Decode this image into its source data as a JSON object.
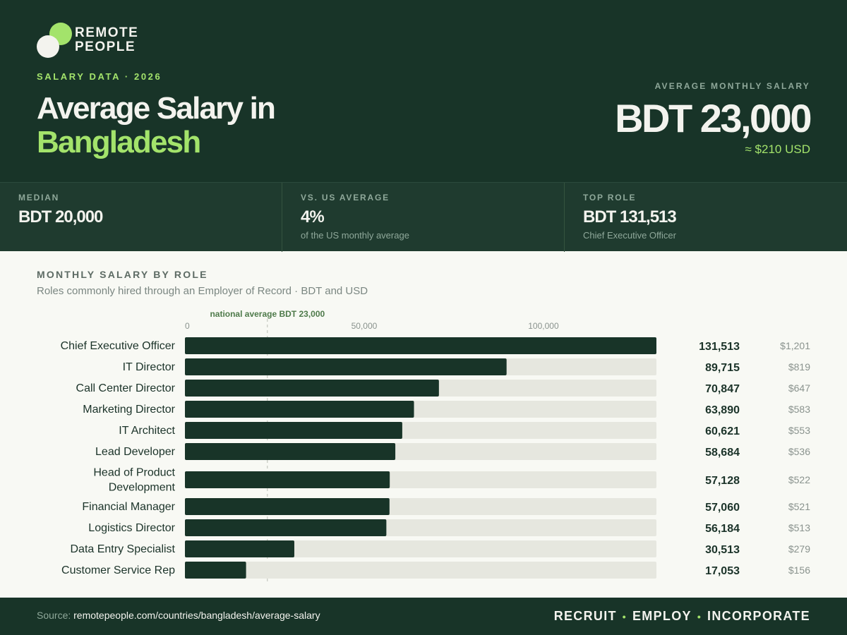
{
  "brand": {
    "line1": "REMOTE",
    "line2": "PEOPLE"
  },
  "header": {
    "eyebrow": "SALARY DATA · 2026",
    "title_line1": "Average Salary in",
    "title_line2": "Bangladesh",
    "avg_label": "AVERAGE MONTHLY SALARY",
    "avg_value": "BDT 23,000",
    "avg_usd": "≈ $210 USD"
  },
  "stats": [
    {
      "label": "MEDIAN",
      "value": "BDT 20,000",
      "sub": ""
    },
    {
      "label": "VS. US AVERAGE",
      "value": "4%",
      "sub": "of the US monthly average"
    },
    {
      "label": "TOP ROLE",
      "value": "BDT 131,513",
      "sub": "Chief Executive Officer"
    }
  ],
  "section": {
    "title": "MONTHLY SALARY BY ROLE",
    "subtitle": "Roles commonly hired through an Employer of Record · BDT and USD"
  },
  "chart_data": {
    "type": "bar",
    "orientation": "horizontal",
    "x_ticks": [
      {
        "value": 0,
        "label": "0"
      },
      {
        "value": 50000,
        "label": "50,000"
      },
      {
        "value": 100000,
        "label": "100,000"
      }
    ],
    "xlim": [
      0,
      131513
    ],
    "reference_line": {
      "value": 23000,
      "label": "national average BDT 23,000"
    },
    "colors": {
      "bar": "#183428",
      "track": "#e6e7df",
      "reference": "#4e7a4a"
    },
    "rows": [
      {
        "label": "Chief Executive Officer",
        "value": 131513,
        "value_label": "131,513",
        "usd": "$1,201"
      },
      {
        "label": "IT Director",
        "value": 89715,
        "value_label": "89,715",
        "usd": "$819"
      },
      {
        "label": "Call Center Director",
        "value": 70847,
        "value_label": "70,847",
        "usd": "$647"
      },
      {
        "label": "Marketing Director",
        "value": 63890,
        "value_label": "63,890",
        "usd": "$583"
      },
      {
        "label": "IT Architect",
        "value": 60621,
        "value_label": "60,621",
        "usd": "$553"
      },
      {
        "label": "Lead Developer",
        "value": 58684,
        "value_label": "58,684",
        "usd": "$536"
      },
      {
        "label": "Head of Product Development",
        "label_lines": [
          "Head of Product",
          "Development"
        ],
        "value": 57128,
        "value_label": "57,128",
        "usd": "$522"
      },
      {
        "label": "Financial Manager",
        "value": 57060,
        "value_label": "57,060",
        "usd": "$521"
      },
      {
        "label": "Logistics Director",
        "value": 56184,
        "value_label": "56,184",
        "usd": "$513"
      },
      {
        "label": "Data Entry Specialist",
        "value": 30513,
        "value_label": "30,513",
        "usd": "$279"
      },
      {
        "label": "Customer Service Rep",
        "value": 17053,
        "value_label": "17,053",
        "usd": "$156"
      }
    ]
  },
  "footer": {
    "source_label": "Source:",
    "source_url": "remotepeople.com/countries/bangladesh/average-salary",
    "tagline": [
      "RECRUIT",
      "EMPLOY",
      "INCORPORATE"
    ]
  }
}
